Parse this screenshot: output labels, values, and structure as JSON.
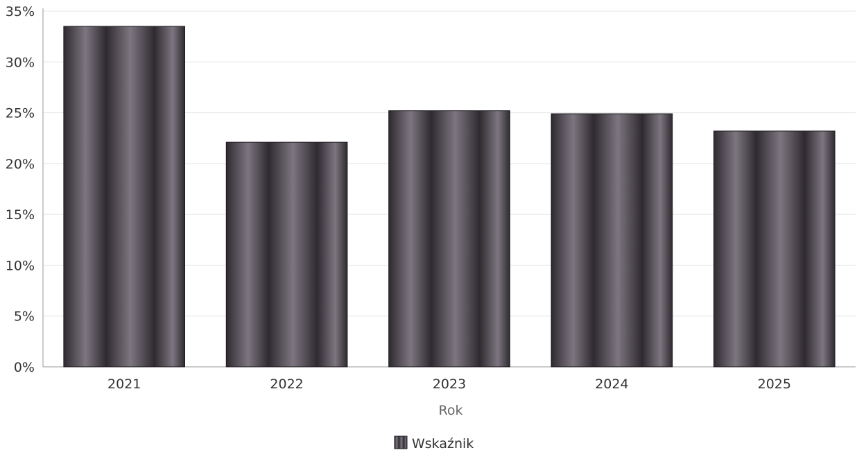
{
  "chart_data": {
    "type": "bar",
    "categories": [
      "2021",
      "2022",
      "2023",
      "2024",
      "2025"
    ],
    "series": [
      {
        "name": "Wskaźnik",
        "values": [
          33.5,
          22.1,
          25.2,
          24.9,
          23.2
        ]
      }
    ],
    "title": "",
    "xlabel": "Rok",
    "ylabel": "",
    "ylim": [
      0,
      35
    ],
    "yticks": [
      "0%",
      "5%",
      "10%",
      "15%",
      "20%",
      "25%",
      "30%",
      "35%"
    ],
    "y_unit": "%",
    "grid": true,
    "legend_position": "bottom-center",
    "colors": {
      "bar_dark": "#2f2a30",
      "bar_light": "#7d7680",
      "bar_edge": "#1e1a1f",
      "grid": "#e4e4e4",
      "axis": "#9a9a9a",
      "text": "#333333",
      "xlabel_text": "#666666"
    }
  }
}
